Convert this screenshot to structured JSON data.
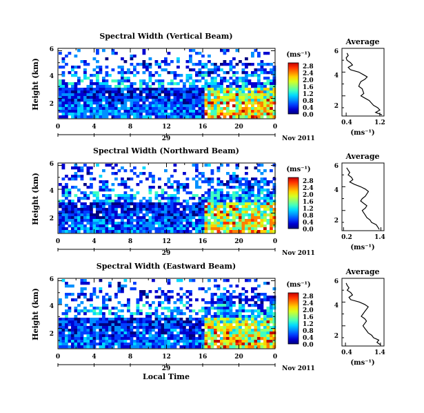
{
  "figure": {
    "xlabel": "Local Time",
    "date_label": "Nov 2011",
    "day_label": "29",
    "ylabel": "Height (km)"
  },
  "colorbar_colors": [
    "#000080",
    "#0000d0",
    "#0040ff",
    "#0090ff",
    "#00d8ff",
    "#40ffc0",
    "#90ff70",
    "#d8ff20",
    "#ffd000",
    "#ff8000",
    "#ff3000",
    "#c00000"
  ],
  "chart_data": [
    {
      "type": "heatmap",
      "title": "Spectral Width (Vertical Beam)",
      "xlabel": "Local Time",
      "ylabel": "Height (km)",
      "x_ticks": [
        "0",
        "4",
        "8",
        "12",
        "16",
        "20",
        "0"
      ],
      "y_ticks": [
        "2",
        "4",
        "6"
      ],
      "xlim": [
        0,
        24
      ],
      "ylim": [
        0.3,
        6.2
      ],
      "colorbar": {
        "label": "(ms⁻¹)",
        "ticks": [
          "0.0",
          "0.4",
          "0.8",
          "1.2",
          "1.6",
          "2.0",
          "2.4",
          "2.8"
        ],
        "range": [
          0,
          3.0
        ]
      },
      "average": {
        "title": "Average",
        "xlabel": "(ms⁻¹)",
        "x_ticks": [
          "0.4",
          "1.2"
        ],
        "xlim": [
          0.3,
          1.3
        ],
        "y_ticks": [
          "2",
          "4",
          "6"
        ],
        "heights": [
          0.4,
          0.6,
          0.8,
          1.0,
          1.2,
          1.4,
          1.6,
          1.8,
          2.0,
          2.2,
          2.4,
          2.6,
          2.8,
          3.0,
          3.2,
          3.4,
          3.6,
          3.8,
          4.0,
          4.2,
          4.4,
          4.6,
          4.8,
          5.0,
          5.2,
          5.4,
          5.6
        ],
        "values": [
          1.25,
          1.1,
          1.2,
          1.15,
          1.05,
          1.0,
          0.95,
          0.85,
          0.75,
          0.82,
          0.8,
          0.78,
          0.7,
          0.72,
          0.75,
          0.85,
          0.9,
          0.8,
          0.7,
          0.5,
          0.45,
          0.55,
          0.5,
          0.42,
          0.4,
          0.45,
          0.42
        ]
      }
    },
    {
      "type": "heatmap",
      "title": "Spectral Width (Northward Beam)",
      "xlabel": "Local Time",
      "ylabel": "Height (km)",
      "x_ticks": [
        "0",
        "4",
        "8",
        "12",
        "16",
        "20",
        "0"
      ],
      "y_ticks": [
        "2",
        "4",
        "6"
      ],
      "xlim": [
        0,
        24
      ],
      "ylim": [
        0.3,
        6.2
      ],
      "colorbar": {
        "label": "(ms⁻¹)",
        "ticks": [
          "0.0",
          "0.4",
          "0.8",
          "1.2",
          "1.6",
          "2.0",
          "2.4",
          "2.8"
        ],
        "range": [
          0,
          3.0
        ]
      },
      "average": {
        "title": "Average",
        "xlabel": "(ms⁻¹)",
        "x_ticks": [
          "0.2",
          "1.4"
        ],
        "xlim": [
          0.15,
          1.5
        ],
        "y_ticks": [
          "2",
          "4",
          "6"
        ],
        "heights": [
          0.4,
          0.6,
          0.8,
          1.0,
          1.2,
          1.4,
          1.6,
          1.8,
          2.0,
          2.2,
          2.4,
          2.6,
          2.8,
          3.0,
          3.2,
          3.4,
          3.6,
          3.8,
          4.0,
          4.2,
          4.4,
          4.6,
          4.8,
          5.0,
          5.2,
          5.4,
          5.6
        ],
        "values": [
          1.35,
          1.3,
          1.25,
          1.1,
          1.05,
          0.95,
          0.9,
          0.85,
          0.8,
          0.9,
          0.95,
          0.85,
          0.75,
          0.8,
          0.9,
          0.95,
          1.0,
          0.9,
          0.75,
          0.55,
          0.4,
          0.5,
          0.45,
          0.35,
          0.4,
          0.35,
          0.3
        ]
      }
    },
    {
      "type": "heatmap",
      "title": "Spectral Width (Eastward Beam)",
      "xlabel": "Local Time",
      "ylabel": "Height (km)",
      "x_ticks": [
        "0",
        "4",
        "8",
        "12",
        "16",
        "20",
        "0"
      ],
      "y_ticks": [
        "2",
        "4",
        "6"
      ],
      "xlim": [
        0,
        24
      ],
      "ylim": [
        0.3,
        6.2
      ],
      "colorbar": {
        "label": "(ms⁻¹)",
        "ticks": [
          "0.0",
          "0.4",
          "0.8",
          "1.2",
          "1.6",
          "2.0",
          "2.4",
          "2.8"
        ],
        "range": [
          0,
          3.0
        ]
      },
      "average": {
        "title": "Average",
        "xlabel": "(ms⁻¹)",
        "x_ticks": [
          "0.4",
          "1.4"
        ],
        "xlim": [
          0.3,
          1.5
        ],
        "y_ticks": [
          "2",
          "4",
          "6"
        ],
        "heights": [
          0.4,
          0.6,
          0.8,
          1.0,
          1.2,
          1.4,
          1.6,
          1.8,
          2.0,
          2.2,
          2.4,
          2.6,
          2.8,
          3.0,
          3.2,
          3.4,
          3.6,
          3.8,
          4.0,
          4.2,
          4.4,
          4.6,
          4.8,
          5.0,
          5.2,
          5.4,
          5.6
        ],
        "values": [
          1.4,
          1.3,
          1.35,
          1.2,
          1.15,
          1.05,
          1.0,
          0.95,
          0.9,
          0.95,
          1.0,
          0.95,
          0.85,
          0.9,
          0.95,
          1.0,
          1.05,
          0.95,
          0.8,
          0.55,
          0.5,
          0.6,
          0.55,
          0.45,
          0.5,
          0.45,
          0.42
        ]
      }
    }
  ]
}
